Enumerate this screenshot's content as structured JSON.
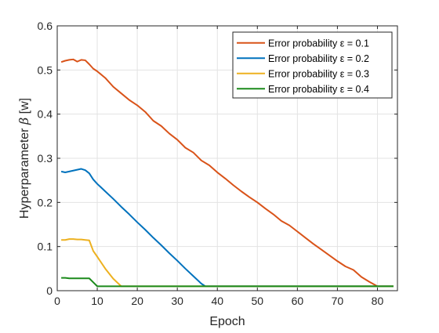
{
  "chart_data": {
    "type": "line",
    "title": "",
    "xlabel": "Epoch",
    "ylabel": "Hyperparameter β [w]",
    "xlim": [
      0,
      85
    ],
    "ylim": [
      0,
      0.6
    ],
    "xticks": [
      "0",
      "10",
      "20",
      "30",
      "40",
      "50",
      "60",
      "70",
      "80"
    ],
    "yticks": [
      "0",
      "0.1",
      "0.2",
      "0.3",
      "0.4",
      "0.5",
      "0.6"
    ],
    "xtick_values": [
      0,
      10,
      20,
      30,
      40,
      50,
      60,
      70,
      80
    ],
    "ytick_values": [
      0,
      0.1,
      0.2,
      0.3,
      0.4,
      0.5,
      0.6
    ],
    "grid": true,
    "legend_position": "top-right",
    "series": [
      {
        "name": "Error probability ε = 0.1",
        "color": "#D95319",
        "x": [
          1,
          2,
          3,
          4,
          5,
          6,
          7,
          8,
          9,
          10,
          12,
          14,
          16,
          18,
          20,
          22,
          24,
          26,
          28,
          30,
          32,
          34,
          36,
          38,
          40,
          42,
          44,
          46,
          48,
          50,
          52,
          54,
          56,
          58,
          60,
          62,
          64,
          66,
          68,
          70,
          72,
          74,
          76,
          78,
          80,
          81,
          84
        ],
        "y": [
          0.518,
          0.521,
          0.523,
          0.524,
          0.519,
          0.523,
          0.522,
          0.513,
          0.503,
          0.497,
          0.482,
          0.462,
          0.447,
          0.432,
          0.42,
          0.405,
          0.385,
          0.373,
          0.356,
          0.342,
          0.324,
          0.313,
          0.295,
          0.284,
          0.268,
          0.254,
          0.239,
          0.225,
          0.212,
          0.2,
          0.186,
          0.173,
          0.158,
          0.148,
          0.134,
          0.12,
          0.106,
          0.093,
          0.08,
          0.067,
          0.055,
          0.047,
          0.031,
          0.02,
          0.01,
          0.01,
          0.01
        ]
      },
      {
        "name": "Error probability ε = 0.2",
        "color": "#0072BD",
        "x": [
          1,
          2,
          3,
          4,
          5,
          6,
          7,
          8,
          9,
          10,
          12,
          14,
          16,
          18,
          20,
          22,
          24,
          26,
          28,
          30,
          32,
          34,
          36,
          37,
          84
        ],
        "y": [
          0.27,
          0.268,
          0.27,
          0.272,
          0.274,
          0.276,
          0.273,
          0.266,
          0.252,
          0.242,
          0.225,
          0.208,
          0.19,
          0.173,
          0.155,
          0.138,
          0.12,
          0.103,
          0.085,
          0.068,
          0.05,
          0.033,
          0.016,
          0.01,
          0.01
        ]
      },
      {
        "name": "Error probability ε = 0.3",
        "color": "#EDB120",
        "x": [
          1,
          2,
          3,
          4,
          5,
          6,
          7,
          8,
          9,
          10,
          12,
          14,
          16,
          17,
          84
        ],
        "y": [
          0.115,
          0.115,
          0.117,
          0.117,
          0.116,
          0.116,
          0.115,
          0.114,
          0.09,
          0.077,
          0.05,
          0.027,
          0.01,
          0.01,
          0.01
        ]
      },
      {
        "name": "Error probability ε = 0.4",
        "color": "#1B8A1B",
        "x": [
          1,
          2,
          3,
          4,
          5,
          6,
          7,
          8,
          9,
          10,
          84
        ],
        "y": [
          0.029,
          0.029,
          0.028,
          0.028,
          0.028,
          0.028,
          0.028,
          0.028,
          0.019,
          0.01,
          0.01
        ]
      }
    ]
  }
}
